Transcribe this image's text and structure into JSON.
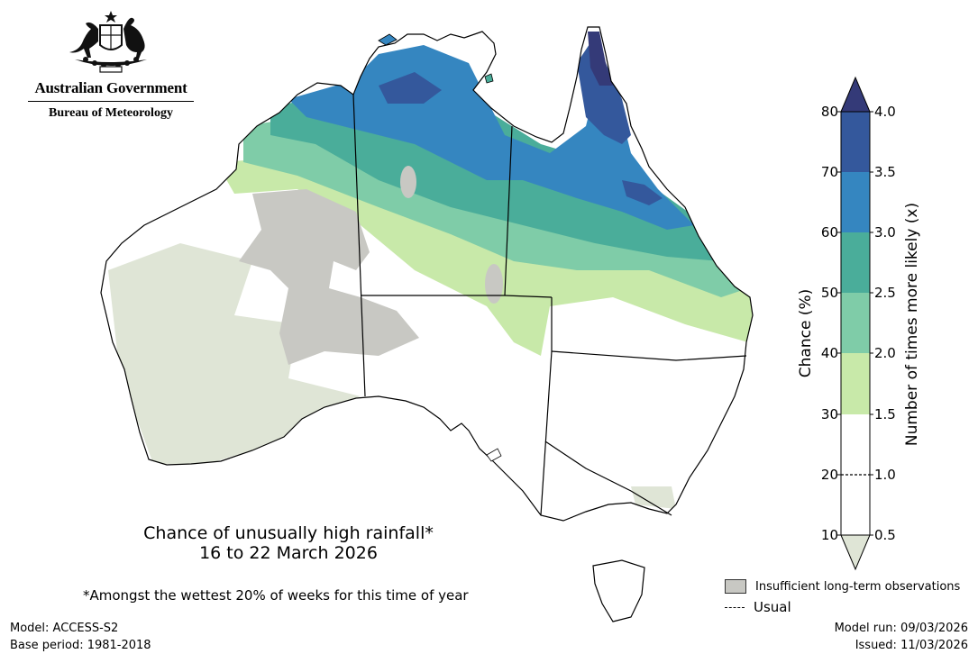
{
  "header": {
    "org_name": "Australian Government",
    "bureau_name": "Bureau of Meteorology"
  },
  "title": {
    "line1": "Chance of unusually high rainfall*",
    "line2": "16 to 22 March 2026"
  },
  "footnote": "*Amongst the wettest 20% of weeks for this time of year",
  "model_info": {
    "model": "Model: ACCESS-S2",
    "base_period": "Base period: 1981-2018"
  },
  "run_info": {
    "model_run": "Model run: 09/03/2026",
    "issued": "Issued: 11/03/2026"
  },
  "legend": {
    "insufficient_label": "Insufficient long-term observations",
    "insufficient_color": "#c8c8c3",
    "usual_label": "Usual"
  },
  "colorbar": {
    "chance_label": "Chance (%)",
    "likely_label": "Number of times more likely (x)",
    "chance_ticks": [
      "10",
      "20",
      "30",
      "40",
      "50",
      "60",
      "70",
      "80"
    ],
    "likely_ticks": [
      "0.5",
      "1.0",
      "1.5",
      "2.0",
      "2.5",
      "3.0",
      "3.5",
      "4.0"
    ],
    "colors": {
      "below_10": "#dfe5d6",
      "10_30": "#ffffff",
      "30_40": "#c8e9a9",
      "40_50": "#7fcca8",
      "50_60": "#4aad9a",
      "60_70": "#3586c0",
      "70_80": "#34589c",
      "above_80": "#343a78"
    }
  }
}
